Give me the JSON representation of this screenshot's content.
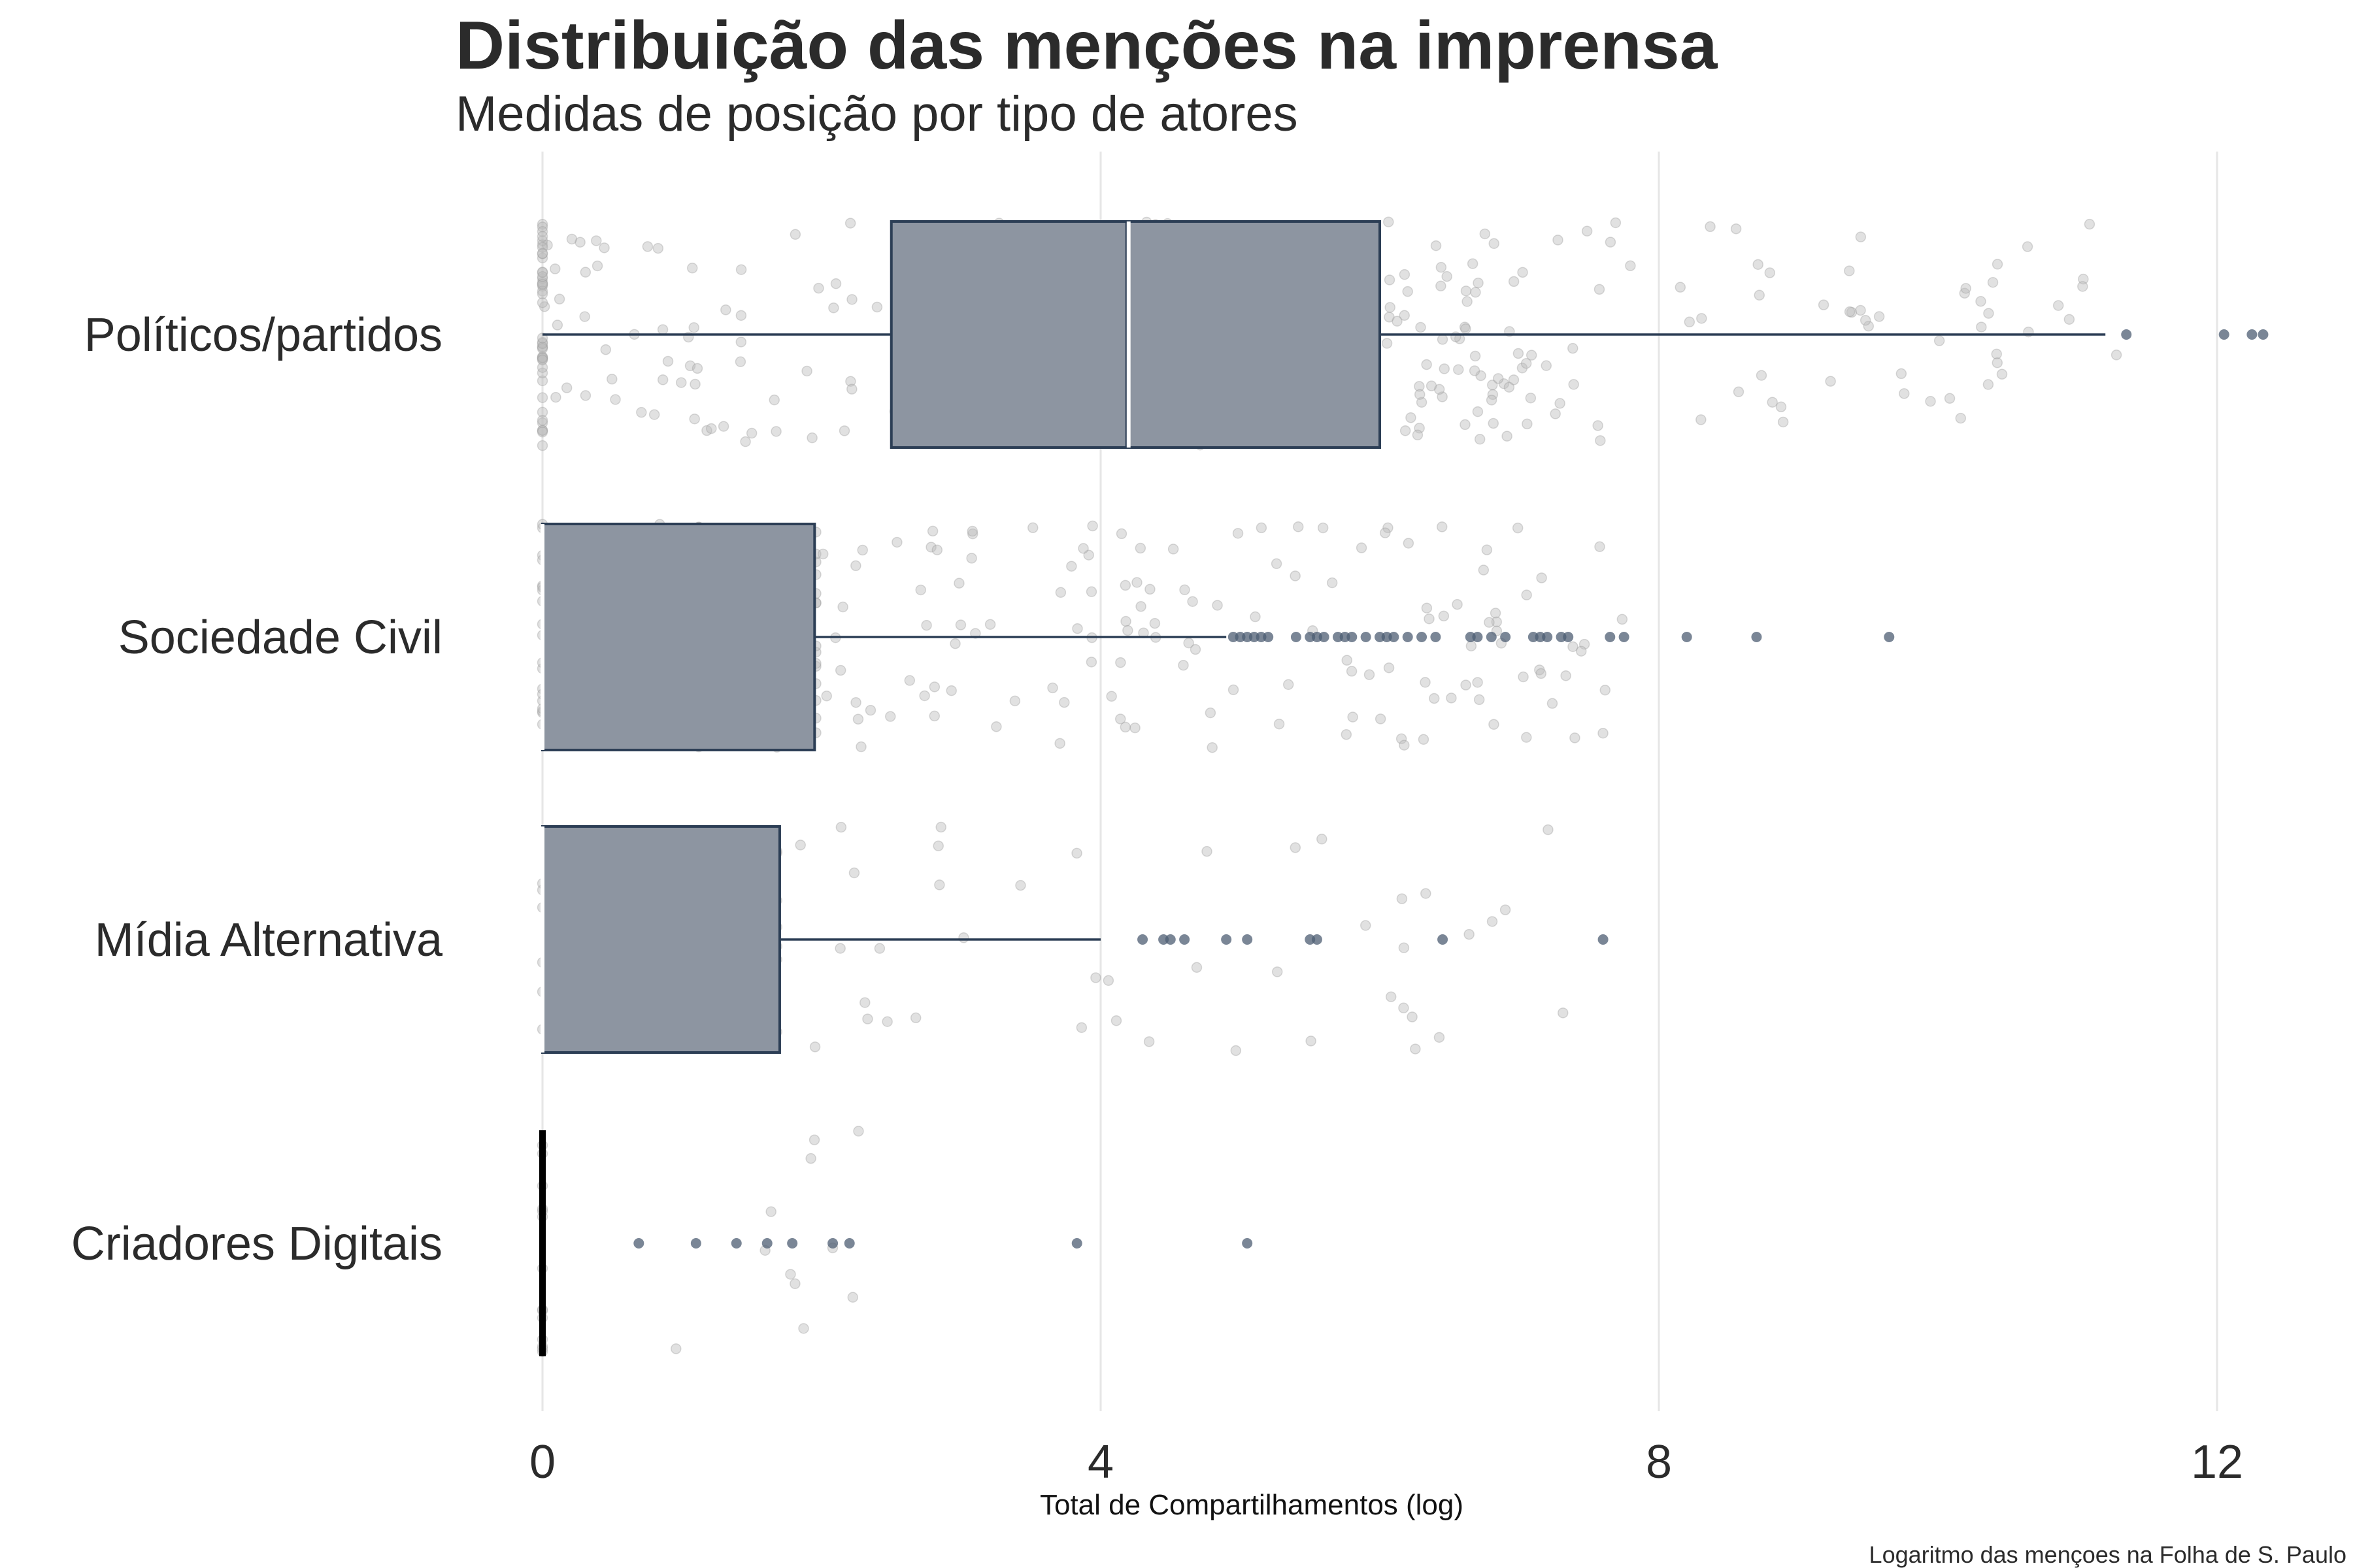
{
  "chart_data": {
    "type": "boxplot",
    "title": "Distribuição das menções na imprensa",
    "subtitle": "Medidas de posição por tipo de atores",
    "xlabel": "Total de Compartilhamentos (log)",
    "caption": "Logaritmo das mençoes na Folha de S. Paulo",
    "xlim": [
      -0.05,
      12.5
    ],
    "xticks": [
      0,
      4,
      8,
      12
    ],
    "grid": "vertical-major",
    "colors": {
      "box_fill": "#8d95a1",
      "box_stroke": "#2c3e55",
      "outlier": "#4d5d73",
      "jitter": "#bdbdbd",
      "gridline": "#e6e6e6"
    },
    "categories": [
      "Políticos/partidos",
      "Sociedade Civil",
      "Mídia Alternativa",
      "Criadores Digitais"
    ],
    "boxes": [
      {
        "category": "Políticos/partidos",
        "min": 0,
        "q1": 2.5,
        "median": 4.2,
        "q3": 6.0,
        "max": 11.2,
        "outliers": [
          11.35,
          12.05,
          12.25,
          12.33
        ]
      },
      {
        "category": "Sociedade Civil",
        "min": 0,
        "q1": 0,
        "median": 0,
        "q3": 1.95,
        "max": 4.9,
        "outliers": [
          4.95,
          5.0,
          5.05,
          5.1,
          5.15,
          5.2,
          5.4,
          5.5,
          5.55,
          5.6,
          5.7,
          5.75,
          5.8,
          5.9,
          6.0,
          6.05,
          6.1,
          6.2,
          6.3,
          6.4,
          6.65,
          6.7,
          6.8,
          6.9,
          7.1,
          7.15,
          7.2,
          7.3,
          7.35,
          7.65,
          7.75,
          8.2,
          8.7,
          9.65
        ]
      },
      {
        "category": "Mídia Alternativa",
        "min": 0,
        "q1": 0,
        "median": 0,
        "q3": 1.7,
        "max": 4.0,
        "outliers": [
          4.3,
          4.45,
          4.5,
          4.6,
          4.9,
          5.05,
          5.5,
          5.55,
          6.45,
          7.6
        ]
      },
      {
        "category": "Criadores Digitais",
        "min": 0,
        "q1": 0,
        "median": 0,
        "q3": 0,
        "max": 0,
        "outliers": [
          0.69,
          1.1,
          1.39,
          1.61,
          1.79,
          2.08,
          2.2,
          3.83,
          5.05
        ]
      }
    ],
    "jitter_points_note_count": [
      420,
      260,
      90,
      25
    ]
  }
}
